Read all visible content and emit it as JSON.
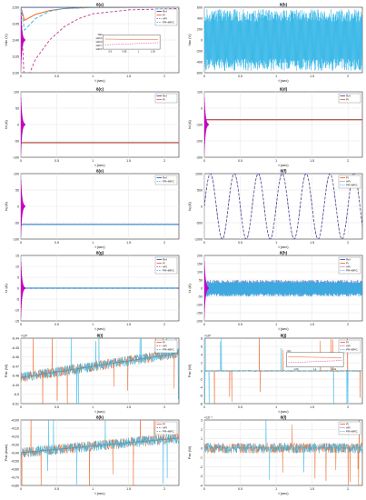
{
  "figure": {
    "colors": {
      "ref": "#1f3fb5",
      "pi": "#ee5a16",
      "api": "#c43b9a",
      "pr_mrc": "#2eb4e6",
      "transient": "#c800c8",
      "axis": "#333333",
      "grid": "#e6e6e6"
    }
  },
  "chart_data": [
    {
      "id": "8a",
      "type": "line",
      "title": "8(a)",
      "ylabel": "Vdc (V)",
      "xlabel": "t (sec)",
      "xlim": [
        0,
        2.2
      ],
      "ylim": [
        1130,
        1150
      ],
      "xticks": [
        "0",
        "0.5",
        "1",
        "1.5",
        "2"
      ],
      "yticks": [
        "1130",
        "1135",
        "1140",
        "1145",
        "1150"
      ],
      "legend": {
        "position": "top-right",
        "entries": [
          "Ref",
          "PI",
          "API",
          "PR+MRC"
        ]
      },
      "inset": {
        "yticks": [
          "1149.6",
          "1149.7",
          "1149.8",
          "1149.9",
          "1150"
        ],
        "xticks": [
          "0.9",
          "0.95",
          "1",
          "1.05"
        ]
      },
      "series": [
        {
          "name": "Ref",
          "x": [
            0,
            2.2
          ],
          "y": [
            1150,
            1150
          ]
        },
        {
          "name": "PI",
          "x": [
            0,
            0.05,
            0.2,
            0.4,
            0.6,
            0.8,
            1.0,
            2.2
          ],
          "y": [
            1150,
            1146,
            1147.8,
            1149,
            1149.6,
            1149.8,
            1149.9,
            1150
          ]
        },
        {
          "name": "API",
          "x": [
            0,
            0.05,
            0.2,
            0.4,
            0.6,
            0.8,
            1.0,
            1.5,
            2.2
          ],
          "y": [
            1150,
            1126,
            1134,
            1140,
            1144,
            1146.5,
            1148,
            1149.2,
            1149.6
          ]
        },
        {
          "name": "PR+MRC",
          "x": [
            0,
            0.05,
            0.2,
            0.4,
            0.6,
            1.0,
            2.2
          ],
          "y": [
            1150,
            1143,
            1146.5,
            1148.8,
            1149.6,
            1149.9,
            1150
          ]
        }
      ]
    },
    {
      "id": "8b",
      "type": "line",
      "title": "8(b)",
      "ylabel": "Vac (V)",
      "xlabel": "t (sec)",
      "xlim": [
        0,
        2.2
      ],
      "ylim": [
        -600,
        600
      ],
      "xticks": [
        "0",
        "0.5",
        "1",
        "1.5",
        "2"
      ],
      "yticks": [
        "-600",
        "-400",
        "-200",
        "0",
        "200",
        "400",
        "600"
      ],
      "series": [
        {
          "name": "Vac",
          "kind": "sinusoid",
          "amplitude": 565,
          "frequency_hz": 50
        }
      ]
    },
    {
      "id": "8c",
      "type": "line",
      "title": "8(c)",
      "ylabel": "Id (A)",
      "xlabel": "t (sec)",
      "xlim": [
        0,
        2.2
      ],
      "ylim": [
        -100,
        100
      ],
      "xticks": [
        "0",
        "0.5",
        "1",
        "1.5",
        "2"
      ],
      "yticks": [
        "-100",
        "-50",
        "0",
        "50",
        "100"
      ],
      "legend": {
        "position": "top-right",
        "entries": [
          "Ref",
          "PI"
        ]
      },
      "series": [
        {
          "name": "Ref",
          "x": [
            0,
            2.2
          ],
          "y": [
            -55,
            -55
          ]
        },
        {
          "name": "PI",
          "x": [
            0,
            2.2
          ],
          "y": [
            -56,
            -56
          ]
        }
      ]
    },
    {
      "id": "8d",
      "type": "line",
      "title": "8(d)",
      "ylabel": "Id (A)",
      "xlabel": "t (sec)",
      "xlim": [
        0,
        2.2
      ],
      "ylim": [
        -300,
        100
      ],
      "xticks": [
        "0",
        "0.5",
        "1",
        "1.5",
        "2"
      ],
      "yticks": [
        "-300",
        "-200",
        "-100",
        "0",
        "100"
      ],
      "legend": {
        "position": "top-right",
        "entries": [
          "Ref",
          "PI"
        ]
      },
      "series": [
        {
          "name": "Ref",
          "x": [
            0,
            2.2
          ],
          "y": [
            -70,
            -70
          ]
        },
        {
          "name": "PI",
          "x": [
            0,
            2.2
          ],
          "y": [
            -72,
            -72
          ]
        }
      ]
    },
    {
      "id": "8e",
      "type": "line",
      "title": "8(e)",
      "ylabel": "Iq (A)",
      "xlabel": "t (sec)",
      "xlim": [
        0,
        2.2
      ],
      "ylim": [
        -100,
        100
      ],
      "xticks": [
        "0",
        "0.5",
        "1",
        "1.5",
        "2"
      ],
      "yticks": [
        "-100",
        "-50",
        "0",
        "50",
        "100"
      ],
      "legend": {
        "position": "top-right",
        "entries": [
          "Ref",
          "PR+MRC"
        ]
      },
      "series": [
        {
          "name": "Ref",
          "x": [
            0,
            2.2
          ],
          "y": [
            -55,
            -55
          ]
        },
        {
          "name": "PR+MRC",
          "x": [
            0,
            2.2
          ],
          "y": [
            -56,
            -56
          ]
        }
      ]
    },
    {
      "id": "8f",
      "type": "line",
      "title": "8(f)",
      "ylabel": "Iq (A)",
      "xlabel": "t (sec)",
      "xlim": [
        0,
        2.2
      ],
      "ylim": [
        -1000,
        1000
      ],
      "xticks": [
        "0",
        "0.5",
        "1",
        "1.5",
        "2"
      ],
      "yticks": [
        "-1000",
        "-500",
        "0",
        "500",
        "1000"
      ],
      "legend": {
        "position": "top-right",
        "entries": [
          "PI",
          "API",
          "PR+MRC"
        ]
      },
      "series": [
        {
          "name": "Iq",
          "kind": "sinusoid",
          "amplitude": 1000,
          "frequency_hz": 3
        }
      ]
    },
    {
      "id": "8g",
      "type": "line",
      "title": "8(g)",
      "ylabel": "Iz (A)",
      "xlabel": "t (sec)",
      "xlim": [
        0,
        2.2
      ],
      "ylim": [
        -15,
        15
      ],
      "xticks": [
        "0",
        "0.5",
        "1",
        "1.5",
        "2"
      ],
      "yticks": [
        "-15",
        "-10",
        "-5",
        "0",
        "5",
        "10",
        "15"
      ],
      "legend": {
        "position": "top-right",
        "entries": [
          "Ref",
          "PI",
          "API",
          "PR+MRC"
        ]
      },
      "series": [
        {
          "name": "Ref",
          "x": [
            0,
            2.2
          ],
          "y": [
            0,
            0
          ]
        },
        {
          "name": "PR+MRC",
          "x": [
            0,
            2.2
          ],
          "y": [
            0.1,
            0.1
          ]
        }
      ]
    },
    {
      "id": "8h",
      "type": "line",
      "title": "8(h)",
      "ylabel": "Iz (A)",
      "xlabel": "t (sec)",
      "xlim": [
        0,
        2.2
      ],
      "ylim": [
        -200,
        200
      ],
      "xticks": [
        "0",
        "0.5",
        "1",
        "1.5",
        "2"
      ],
      "yticks": [
        "-200",
        "-150",
        "-100",
        "-50",
        "0",
        "50",
        "100",
        "150",
        "200"
      ],
      "legend": {
        "position": "top-right",
        "entries": [
          "Ref",
          "PI",
          "API",
          "PR+MRC"
        ]
      },
      "series": [
        {
          "name": "Iz",
          "kind": "sinusoid",
          "amplitude": 50,
          "frequency_hz": 50
        }
      ]
    },
    {
      "id": "8i",
      "type": "line",
      "title": "8(i)",
      "ylabel": "Pdc (W)",
      "xlabel": "t (sec)",
      "multiplier": "×10⁵",
      "xlim": [
        0,
        2.2
      ],
      "ylim": [
        -6.51,
        -6.44
      ],
      "xticks": [
        "0",
        "0.5",
        "1",
        "1.5",
        "2"
      ],
      "yticks": [
        "-6.51",
        "-6.5",
        "-6.49",
        "-6.48",
        "-6.47",
        "-6.46",
        "-6.45",
        "-6.44"
      ],
      "legend": {
        "position": "top-right",
        "entries": [
          "PI",
          "API",
          "PR+MRC"
        ]
      },
      "series": [
        {
          "name": "PI",
          "x": [
            0,
            2.2
          ],
          "y": [
            -6.482,
            -6.456
          ]
        },
        {
          "name": "PR+MRC",
          "x": [
            0,
            2.2
          ],
          "y": [
            -6.482,
            -6.456
          ]
        }
      ]
    },
    {
      "id": "8j",
      "type": "line",
      "title": "8(j)",
      "ylabel": "Pac (W)",
      "xlabel": "t (sec)",
      "multiplier": "×10⁵",
      "xlim": [
        0,
        2.2
      ],
      "ylim": [
        -8,
        8
      ],
      "xticks": [
        "0",
        "0.5",
        "1",
        "1.5",
        "2"
      ],
      "yticks": [
        "-8",
        "-6",
        "-4",
        "-2",
        "0",
        "2",
        "4",
        "6",
        "8"
      ],
      "legend": {
        "position": "top-right",
        "entries": [
          "PI",
          "API",
          "PR+MRC"
        ]
      },
      "inset": {
        "multiplier": "×10⁵",
        "xticks": [
          "1.09",
          "1.1",
          "1.11"
        ]
      },
      "series": [
        {
          "name": "PR+MRC",
          "x": [
            0,
            2.2
          ],
          "y": [
            0,
            0
          ]
        }
      ]
    },
    {
      "id": "8k",
      "type": "line",
      "title": "8(k)",
      "ylabel": "Pdc (kvar)",
      "xlabel": "t (sec)",
      "xlim": [
        0,
        2.2
      ],
      "ylim": [
        -4180,
        -4100
      ],
      "xticks": [
        "0",
        "0.5",
        "1",
        "1.5",
        "2"
      ],
      "yticks": [
        "-4180",
        "-4170",
        "-4160",
        "-4150",
        "-4140",
        "-4130",
        "-4120",
        "-4110",
        "-4100"
      ],
      "legend": {
        "position": "top-right",
        "entries": [
          "PI",
          "API",
          "PR+MRC"
        ]
      },
      "series": [
        {
          "name": "PI",
          "x": [
            0,
            2.2
          ],
          "y": [
            -4140,
            -4122
          ]
        },
        {
          "name": "PR+MRC",
          "x": [
            0,
            2.2
          ],
          "y": [
            -4140,
            -4122
          ]
        }
      ]
    },
    {
      "id": "8l",
      "type": "line",
      "title": "8(l)",
      "ylabel": "Pac (W)",
      "xlabel": "t (sec)",
      "multiplier": "×10⁻⁴",
      "xlim": [
        0,
        2.2
      ],
      "ylim": [
        -4,
        3
      ],
      "xticks": [
        "0",
        "0.5",
        "1",
        "1.5",
        "2"
      ],
      "yticks": [
        "-4",
        "-3",
        "-2",
        "-1",
        "0",
        "1",
        "2",
        "3"
      ],
      "legend": {
        "position": "top-right",
        "entries": [
          "PI",
          "API",
          "PR+MRC"
        ]
      },
      "series": [
        {
          "name": "PR+MRC",
          "x": [
            0,
            2.2
          ],
          "y": [
            0,
            0
          ]
        }
      ]
    }
  ]
}
